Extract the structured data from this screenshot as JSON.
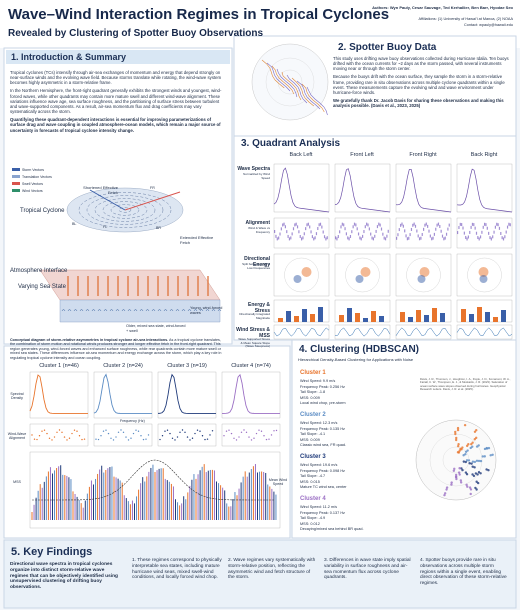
{
  "header": {
    "title": "Wave–Wind Interaction Regimes in Tropical Cyclones",
    "subtitle": "Revealed by Clustering of Spotter Buoy Observations",
    "authors": "Authors: Wyn Pauly, Cesar Sauvage, Ted Kerhallier, Ben Barr, Hyodae Seo",
    "affiliation": "Affiliations: (1) University of Hawai'i at Manoa, (2) NOAA",
    "contact": "Contact: wpauly@hawaii.edu"
  },
  "intro": {
    "heading": "1. Introduction & Summary",
    "paragraphs": [
      "Tropical cyclones (TCs) intensify through air-sea exchanges of momentum and energy that depend strongly on near-surface winds and the evolving wave field. Because storms translate while rotating, the wind-wave system becomes highly asymmetric in a storm-relative frame.",
      "In the Northern Hemisphere, the front-right quadrant generally exhibits the strongest winds and youngest, wind-forced waves, while other quadrants may contain more mature swell and different wind-wave alignment. These variations influence wave age, sea surface roughness, and the partitioning of surface stress between turbulent and wave-supported components. As a result, air-sea momentum flux and drag coefficients may vary systematically across the storm.",
      "Quantifying these quadrant-dependent interactions is essential for improving parameterizations of surface drag and wave coupling in coupled atmosphere-ocean models, which remain a major source of uncertainty in forecasts of tropical cyclone intensity change."
    ],
    "legend": [
      "Storm Vectors",
      "Translation Vectors",
      "Swell Vectors",
      "Wind Vectors"
    ],
    "diagram": {
      "fetch_short": "Shortened Effective Fetch",
      "cyclone": "Tropical Cyclone",
      "fetch_long": "Extended Effective Fetch",
      "fl": "FL",
      "fr": "FR",
      "bl": "BL",
      "br": "BR",
      "atmosphere": "Atmosphere Interface",
      "sea": "Varying Sea State",
      "young": "Young, wind-forced waves",
      "old": "Older, mixed sea state, wind-forced + swell"
    },
    "caption_title": "Conceptual diagram of storm-relative asymmetries in tropical cyclone air-sea interactions.",
    "caption": "As a tropical cyclone translates, the combination of storm motion and rotational winds produces stronger and longer effective fetch in the front-right quadrant. This region generates young, wind-forced waves and enhanced surface roughness, while rear quadrants contain more mature swell or mixed sea states. These differences influence air-sea momentum and energy exchange across the storm, which play a key role in regulating tropical cyclone intensity and ocean coupling."
  },
  "spotter": {
    "heading": "2. Spotter Buoy Data",
    "paragraphs": [
      "This study uses drifting wave buoy observations collected during Hurricane Idalia. Ten buoys drifted with the ocean currents for ~2 days as the storm passed, with several instruments moving near or through the storm center.",
      "Because the buoys drift with the ocean surface, they sample the storm in a storm-relative frame, providing rare in situ observations across multiple cyclone quadrants within a single event. These measurements capture the evolving wind and wave environment under hurricane-force winds.",
      "We gratefully thank Dr. Jacob Davis for sharing these observations and making this analysis possible. (Davis et al., 2023, 2025)"
    ]
  },
  "quadrant": {
    "heading": "3. Quadrant Analysis",
    "columns": [
      "Back Left",
      "Front Left",
      "Front Right",
      "Back Right"
    ],
    "rows": [
      {
        "label": "Wave Spectra",
        "sub": "Normalized by Wind Speed"
      },
      {
        "label": "Alignment",
        "sub": "Wind & Wave vs Frequency"
      },
      {
        "label": "Directional Energy",
        "sub": "Split between High & Low Frequencies"
      },
      {
        "label": "Energy & Stress",
        "sub": "Directionally Integrated Magnitude"
      },
      {
        "label": "Wind Stress & MSS",
        "sub": "Wave Supported Stress & Mean Square Slope (Wave Steepness)"
      }
    ]
  },
  "cluster_plots": {
    "titles": [
      "Cluster 1 (n=46)",
      "Cluster 2 (n=24)",
      "Cluster 3 (n=19)",
      "Cluster 4 (n=74)"
    ],
    "ylabels": [
      "Spectral Density",
      "Wind-Wave Alignment",
      "MSS"
    ],
    "xlabel": "Frequency (Hz)",
    "y2label": "Mean Wind Speed"
  },
  "clustering": {
    "heading": "4. Clustering (HDBSCAN)",
    "subtitle": "Hierarchical Density-Based Clustering for Applications with Noise",
    "clusters": [
      {
        "name": "Cluster 1",
        "color": "#e8742c",
        "lines": [
          "Wind Speed: 9.9 m/s",
          "Frequency Peak: 0.256 Hz",
          "Tail Slope: -1.8",
          "MSS: 0.009",
          "Local wind chop, pre-storm"
        ]
      },
      {
        "name": "Cluster 2",
        "color": "#5b8cc4",
        "lines": [
          "Wind Speed: 12.3 m/s",
          "Frequency Peak: 0.135 Hz",
          "Tail Slope: -4.1",
          "MSS: 0.009",
          "Classic wind sea, FR quad."
        ]
      },
      {
        "name": "Cluster 3",
        "color": "#1f3a7a",
        "lines": [
          "Wind Speed: 19.6 m/s",
          "Frequency Peak: 0.098 Hz",
          "Tail Slope: -4.7",
          "MSS: 0.015",
          "Mature TC wind sea, center"
        ]
      },
      {
        "name": "Cluster 4",
        "color": "#9b6fc4",
        "lines": [
          "Wind Speed: 11.2 m/s",
          "Frequency Peak: 0.137 Hz",
          "Tail Slope: -4.9",
          "MSS: 0.012",
          "Decaying/mixed sea behind BR quad."
        ]
      }
    ],
    "references": "Davis, J. R., Thomson, J., Houghton, I. A., Doyle, J. D., Komaromi, W. A., Fairall, C. W., Thompson, E. J., & Moskaitis, J. R. (2023). Saturation of ocean surface wave slopes observed during hurricanes. Geophysical Research Letters. Davis, J. R. et al. (2025)."
  },
  "findings": {
    "heading": "5. Key Findings",
    "lead": "Directional wave spectra in tropical cyclones organize into distinct storm-relative wave regimes that can be objectively identified using unsupervised clustering of drifting buoy observations.",
    "items": [
      "1. These regimes correspond to physically interpretable sea states, including mature hurricane wind seas, mixed swell-wind conditions, and locally forced wind chop.",
      "2. Wave regimes vary systematically with storm-relative position, reflecting the asymmetric wind and fetch structure of the storm.",
      "3. Differences in wave state imply spatial variability in surface roughness and air-sea momentum flux across cyclone quadrants.",
      "4. Spotter buoys provide rare in situ observations across multiple storm regions within a single event, enabling direct observation of these storm-relative regimes."
    ]
  }
}
